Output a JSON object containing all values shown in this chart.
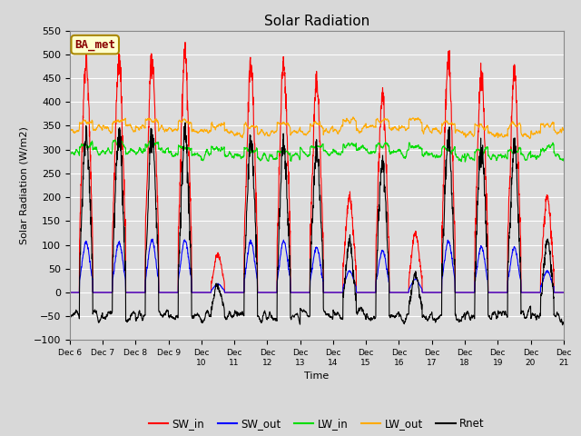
{
  "title": "Solar Radiation",
  "xlabel": "Time",
  "ylabel": "Solar Radiation (W/m2)",
  "ylim": [
    -100,
    550
  ],
  "xlim": [
    0,
    15
  ],
  "annotation": "BA_met",
  "series_colors": {
    "SW_in": "#ff0000",
    "SW_out": "#0000ff",
    "LW_in": "#00dd00",
    "LW_out": "#ffaa00",
    "Rnet": "#000000"
  },
  "legend_labels": [
    "SW_in",
    "SW_out",
    "LW_in",
    "LW_out",
    "Rnet"
  ],
  "fig_bg": "#d8d8d8",
  "ax_bg": "#dcdcdc",
  "num_days": 15,
  "start_day": 6,
  "points_per_day": 144,
  "sw_in_peaks": [
    490,
    490,
    500,
    500,
    80,
    480,
    480,
    450,
    200,
    415,
    125,
    490,
    460,
    460,
    200
  ],
  "sw_out_peaks": [
    105,
    105,
    110,
    110,
    18,
    108,
    108,
    95,
    45,
    88,
    28,
    108,
    95,
    95,
    45
  ],
  "lw_in_day_base": 305,
  "lw_in_night_base": 290,
  "lw_out_day_base": 355,
  "lw_out_night_base": 340,
  "tick_labels": [
    "Dec 6",
    "Dec 7",
    "Dec 8",
    "Dec 9",
    "Dec 10",
    "Dec 11",
    "Dec 12",
    "Dec 13",
    "Dec 14",
    "Dec 15",
    "Dec 16",
    "Dec 17",
    "Dec 18",
    "Dec 19",
    "Dec 20",
    "Dec 21"
  ],
  "tick_labels_short": [
    "Dec 6",
    "Dec 7",
    "Dec 8",
    "Dec 9",
    "Dec 10",
    "Dec 11",
    "Dec 12",
    "Dec 13",
    "Dec 14",
    "Dec 15",
    "Dec 16",
    "Dec 17",
    "Dec 18",
    "Dec 19",
    "Dec 20",
    "Dec 21"
  ]
}
